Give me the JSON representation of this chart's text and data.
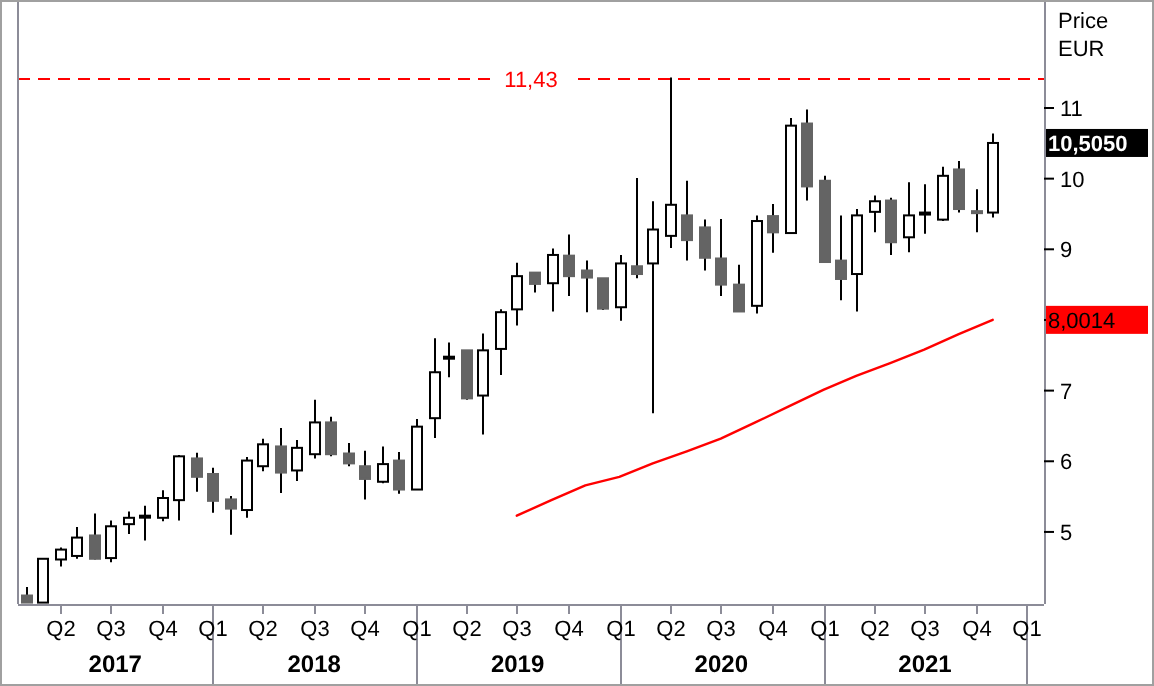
{
  "chart_data": {
    "type": "candlestick",
    "ylabel": "Price\nEUR",
    "x": [
      "2017-02",
      "2017-03",
      "2017-04",
      "2017-05",
      "2017-06",
      "2017-07",
      "2017-08",
      "2017-09",
      "2017-10",
      "2017-11",
      "2017-12",
      "2018-01",
      "2018-02",
      "2018-03",
      "2018-04",
      "2018-05",
      "2018-06",
      "2018-07",
      "2018-08",
      "2018-09",
      "2018-10",
      "2018-11",
      "2018-12",
      "2019-01",
      "2019-02",
      "2019-03",
      "2019-04",
      "2019-05",
      "2019-06",
      "2019-07",
      "2019-08",
      "2019-09",
      "2019-10",
      "2019-11",
      "2019-12",
      "2020-01",
      "2020-02",
      "2020-03",
      "2020-04",
      "2020-05",
      "2020-06",
      "2020-07",
      "2020-08",
      "2020-09",
      "2020-10",
      "2020-11",
      "2020-12",
      "2021-01",
      "2021-02",
      "2021-03",
      "2021-04",
      "2021-05",
      "2021-06",
      "2021-07",
      "2021-08",
      "2021-09",
      "2021-10",
      "2021-11"
    ],
    "ohlc": [
      [
        4.1,
        4.22,
        4.0,
        4.0
      ],
      [
        4.0,
        4.62,
        4.0,
        4.62
      ],
      [
        4.61,
        4.78,
        4.51,
        4.75
      ],
      [
        4.66,
        5.07,
        4.62,
        4.92
      ],
      [
        4.95,
        5.26,
        4.61,
        4.62
      ],
      [
        4.63,
        5.16,
        4.57,
        5.08
      ],
      [
        5.11,
        5.29,
        4.97,
        5.2
      ],
      [
        5.22,
        5.37,
        4.88,
        5.23
      ],
      [
        5.2,
        5.59,
        5.15,
        5.48
      ],
      [
        5.45,
        6.09,
        5.16,
        6.07
      ],
      [
        6.04,
        6.12,
        5.57,
        5.78
      ],
      [
        5.82,
        5.91,
        5.27,
        5.44
      ],
      [
        5.46,
        5.51,
        4.96,
        5.33
      ],
      [
        5.31,
        6.06,
        5.2,
        6.01
      ],
      [
        5.93,
        6.32,
        5.86,
        6.24
      ],
      [
        6.21,
        6.47,
        5.55,
        5.84
      ],
      [
        5.87,
        6.3,
        5.72,
        6.19
      ],
      [
        6.1,
        6.87,
        6.04,
        6.55
      ],
      [
        6.55,
        6.63,
        6.07,
        6.1
      ],
      [
        6.11,
        6.26,
        5.93,
        5.97
      ],
      [
        5.93,
        6.15,
        5.46,
        5.75
      ],
      [
        5.71,
        6.21,
        5.69,
        5.96
      ],
      [
        6.01,
        6.13,
        5.54,
        5.6
      ],
      [
        5.6,
        6.6,
        5.6,
        6.49
      ],
      [
        6.61,
        7.74,
        6.33,
        7.26
      ],
      [
        7.47,
        7.68,
        7.19,
        7.48
      ],
      [
        7.57,
        7.57,
        6.87,
        6.89
      ],
      [
        6.93,
        7.81,
        6.38,
        7.57
      ],
      [
        7.59,
        8.15,
        7.22,
        8.11
      ],
      [
        8.15,
        8.81,
        7.92,
        8.62
      ],
      [
        8.67,
        8.67,
        8.39,
        8.51
      ],
      [
        8.52,
        9.01,
        8.12,
        8.92
      ],
      [
        8.91,
        9.21,
        8.34,
        8.62
      ],
      [
        8.7,
        8.84,
        8.11,
        8.6
      ],
      [
        8.59,
        8.59,
        8.14,
        8.16
      ],
      [
        8.18,
        8.92,
        7.99,
        8.8
      ],
      [
        8.76,
        10.01,
        8.59,
        8.65
      ],
      [
        8.8,
        9.68,
        6.68,
        9.28
      ],
      [
        9.19,
        11.43,
        9.02,
        9.63
      ],
      [
        9.48,
        9.97,
        8.84,
        9.13
      ],
      [
        9.31,
        9.42,
        8.7,
        8.88
      ],
      [
        8.87,
        9.43,
        8.34,
        8.5
      ],
      [
        8.5,
        8.78,
        8.12,
        8.12
      ],
      [
        8.2,
        9.48,
        8.09,
        9.4
      ],
      [
        9.47,
        9.64,
        8.95,
        9.24
      ],
      [
        9.23,
        10.86,
        9.22,
        10.75
      ],
      [
        10.78,
        10.98,
        9.69,
        9.89
      ],
      [
        9.97,
        10.04,
        8.82,
        8.82
      ],
      [
        8.84,
        9.48,
        8.28,
        8.58
      ],
      [
        8.65,
        9.57,
        8.12,
        9.48
      ],
      [
        9.53,
        9.76,
        9.24,
        9.68
      ],
      [
        9.69,
        9.73,
        8.92,
        9.1
      ],
      [
        9.17,
        9.95,
        8.96,
        9.48
      ],
      [
        9.51,
        9.92,
        9.22,
        9.52
      ],
      [
        9.42,
        10.17,
        9.4,
        10.04
      ],
      [
        10.13,
        10.25,
        9.52,
        9.57
      ],
      [
        9.54,
        9.85,
        9.24,
        9.53
      ],
      [
        9.52,
        10.64,
        9.45,
        10.505
      ]
    ],
    "series": [
      {
        "type": "line",
        "color": "#ff0000",
        "x": [
          "2019-07",
          "2019-09",
          "2019-11",
          "2020-01",
          "2020-03",
          "2020-05",
          "2020-07",
          "2020-09",
          "2020-11",
          "2021-01",
          "2021-03",
          "2021-05",
          "2021-07",
          "2021-09",
          "2021-11"
        ],
        "values": [
          5.23,
          5.45,
          5.66,
          5.78,
          5.97,
          6.14,
          6.32,
          6.55,
          6.78,
          7.01,
          7.21,
          7.39,
          7.58,
          7.8,
          8.0014
        ]
      }
    ],
    "xlim": [
      "2017-01-17",
      "2022-02-01"
    ],
    "xticks": [
      {
        "value": "2017-04",
        "label": "Q2"
      },
      {
        "value": "2017-07",
        "label": "Q3"
      },
      {
        "value": "2017-10",
        "label": "Q4"
      },
      {
        "value": "2018-01",
        "label": "Q1"
      },
      {
        "value": "2018-04",
        "label": "Q2"
      },
      {
        "value": "2018-07",
        "label": "Q3"
      },
      {
        "value": "2018-10",
        "label": "Q4"
      },
      {
        "value": "2019-01",
        "label": "Q1"
      },
      {
        "value": "2019-04",
        "label": "Q2"
      },
      {
        "value": "2019-07",
        "label": "Q3"
      },
      {
        "value": "2019-10",
        "label": "Q4"
      },
      {
        "value": "2020-01",
        "label": "Q1"
      },
      {
        "value": "2020-04",
        "label": "Q2"
      },
      {
        "value": "2020-07",
        "label": "Q3"
      },
      {
        "value": "2020-10",
        "label": "Q4"
      },
      {
        "value": "2021-01",
        "label": "Q1"
      },
      {
        "value": "2021-04",
        "label": "Q2"
      },
      {
        "value": "2021-07",
        "label": "Q3"
      },
      {
        "value": "2021-10",
        "label": "Q4"
      },
      {
        "value": "2022-01",
        "label": "Q1"
      }
    ],
    "ylim": [
      3.98,
      12.5
    ],
    "yticks": [
      5,
      6,
      7,
      {
        "value": 8,
        "label": null
      },
      9,
      10,
      11
    ],
    "ref_lines": [
      {
        "axis": "y",
        "value": 11.43,
        "label": "11,43",
        "color": "#ff0000",
        "line_style": "dashed"
      }
    ],
    "annotations": [
      "2017",
      "2018",
      "2019",
      "2020",
      "2021",
      {
        "text": "10,5050",
        "x": "2021-11",
        "y": 10.505
      },
      {
        "text": "8,0014",
        "x": "2021-11",
        "y": 8.0014
      }
    ],
    "grid": false
  }
}
